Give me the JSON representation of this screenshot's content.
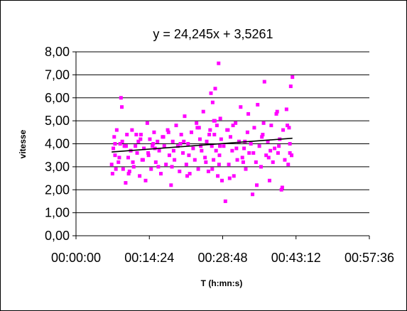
{
  "chart_data": {
    "type": "scatter",
    "title": "",
    "xlabel": "T (h:mn:s)",
    "ylabel": "vitesse",
    "annotation": "y = 24,245x + 3,5261",
    "xlim": [
      "00:00:00",
      "00:57:36"
    ],
    "ylim": [
      0,
      8
    ],
    "x_ticks": [
      "00:00:00",
      "00:14:24",
      "00:28:48",
      "00:43:12",
      "00:57:36"
    ],
    "y_ticks": [
      "0,00",
      "1,00",
      "2,00",
      "3,00",
      "4,00",
      "5,00",
      "6,00",
      "7,00",
      "8,00"
    ],
    "grid": "horizontal",
    "legend": "none",
    "marker": "square",
    "series": [
      {
        "color": "#ff00ff",
        "x": [
          "00:07:00",
          "00:07:10",
          "00:07:20",
          "00:07:30",
          "00:07:40",
          "00:07:50",
          "00:08:00",
          "00:08:20",
          "00:08:40",
          "00:09:00",
          "00:09:15",
          "00:09:30",
          "00:09:45",
          "00:10:00",
          "00:10:15",
          "00:10:30",
          "00:10:45",
          "00:11:00",
          "00:11:20",
          "00:11:40",
          "00:12:00",
          "00:12:15",
          "00:12:30",
          "00:12:45",
          "00:13:00",
          "00:13:20",
          "00:13:40",
          "00:14:00",
          "00:14:15",
          "00:14:30",
          "00:14:45",
          "00:15:00",
          "00:15:20",
          "00:15:40",
          "00:16:00",
          "00:16:20",
          "00:16:40",
          "00:17:00",
          "00:17:20",
          "00:17:40",
          "00:18:00",
          "00:18:20",
          "00:18:40",
          "00:19:00",
          "00:19:20",
          "00:19:40",
          "00:20:00",
          "00:20:20",
          "00:20:40",
          "00:21:00",
          "00:21:20",
          "00:21:40",
          "00:22:00",
          "00:22:20",
          "00:22:40",
          "00:23:00",
          "00:23:20",
          "00:23:40",
          "00:24:00",
          "00:24:20",
          "00:24:40",
          "00:25:00",
          "00:25:20",
          "00:25:40",
          "00:26:00",
          "00:26:20",
          "00:26:30",
          "00:26:40",
          "00:26:50",
          "00:27:00",
          "00:27:10",
          "00:27:20",
          "00:27:30",
          "00:27:40",
          "00:27:50",
          "00:28:00",
          "00:28:10",
          "00:28:20",
          "00:28:30",
          "00:28:40",
          "00:29:00",
          "00:29:20",
          "00:29:40",
          "00:30:00",
          "00:30:20",
          "00:30:40",
          "00:31:00",
          "00:31:20",
          "00:31:40",
          "00:32:00",
          "00:32:20",
          "00:32:40",
          "00:33:00",
          "00:33:20",
          "00:33:40",
          "00:34:00",
          "00:34:20",
          "00:34:40",
          "00:35:00",
          "00:35:20",
          "00:35:40",
          "00:36:00",
          "00:36:20",
          "00:36:40",
          "00:37:00",
          "00:37:20",
          "00:37:40",
          "00:38:00",
          "00:38:20",
          "00:38:40",
          "00:39:00",
          "00:39:20",
          "00:39:40",
          "00:40:00",
          "00:40:20",
          "00:40:40",
          "00:41:00",
          "00:41:20",
          "00:41:40",
          "00:42:00",
          "00:42:10",
          "00:42:20",
          "00:42:30",
          "00:07:40",
          "00:08:30",
          "00:09:50",
          "00:11:10",
          "00:12:40",
          "00:14:10",
          "00:15:30",
          "00:17:10",
          "00:18:50",
          "00:20:30",
          "00:22:10",
          "00:23:50",
          "00:25:30",
          "00:26:10",
          "00:27:15",
          "00:28:15",
          "00:29:50",
          "00:31:30",
          "00:33:10",
          "00:34:50",
          "00:36:30",
          "00:38:10",
          "00:39:50",
          "00:41:30",
          "00:42:20",
          "00:08:50",
          "00:10:20",
          "00:13:10",
          "00:16:10",
          "00:19:10",
          "00:21:50",
          "00:24:30",
          "00:26:45",
          "00:28:05",
          "00:30:10",
          "00:32:50",
          "00:35:30",
          "00:37:50",
          "00:40:30",
          "00:42:00",
          "00:09:05",
          "00:11:50",
          "00:15:10",
          "00:18:10",
          "00:21:10",
          "00:24:10",
          "00:27:05",
          "00:30:50",
          "00:33:50",
          "00:36:50",
          "00:39:30",
          "00:41:50"
        ],
        "y": [
          3.1,
          2.7,
          3.8,
          4.3,
          3.5,
          2.9,
          4.6,
          3.2,
          4.0,
          5.6,
          2.9,
          3.9,
          2.3,
          4.4,
          3.4,
          2.8,
          3.7,
          4.6,
          3.0,
          3.9,
          3.6,
          4.1,
          2.6,
          4.4,
          3.3,
          3.8,
          2.4,
          4.9,
          3.5,
          4.2,
          2.9,
          3.9,
          4.5,
          3.2,
          4.1,
          3.7,
          2.7,
          4.3,
          3.9,
          3.1,
          4.6,
          3.5,
          2.2,
          4.1,
          3.3,
          4.8,
          3.9,
          2.8,
          4.4,
          3.6,
          5.2,
          3.1,
          4.0,
          2.7,
          4.5,
          3.8,
          3.3,
          4.9,
          2.9,
          4.2,
          3.7,
          5.4,
          3.4,
          4.1,
          2.8,
          4.6,
          6.2,
          3.9,
          5.8,
          3.3,
          4.4,
          6.4,
          3.7,
          4.8,
          2.6,
          7.5,
          3.5,
          5.1,
          4.2,
          2.4,
          3.9,
          1.5,
          4.6,
          3.1,
          4.3,
          3.7,
          2.6,
          4.9,
          3.3,
          4.1,
          5.6,
          3.4,
          3.8,
          2.9,
          4.5,
          3.6,
          4.0,
          1.8,
          4.7,
          3.2,
          5.7,
          3.9,
          3.0,
          4.4,
          6.7,
          3.5,
          4.1,
          2.4,
          4.8,
          3.2,
          3.8,
          5.3,
          3.6,
          4.2,
          2.0,
          4.6,
          3.3,
          5.5,
          3.1,
          4.0,
          6.5,
          3.5,
          6.9,
          4.0,
          3.4,
          3.9,
          3.2,
          4.2,
          3.6,
          3.8,
          4.3,
          3.0,
          4.0,
          3.5,
          4.7,
          3.2,
          4.4,
          5.0,
          3.9,
          4.6,
          3.8,
          4.1,
          3.6,
          4.3,
          3.7,
          3.9,
          4.8,
          3.5,
          6.0,
          2.7,
          3.3,
          3.0,
          3.7,
          2.6,
          3.9,
          2.9,
          3.1,
          2.5,
          3.2,
          2.2,
          3.4,
          2.1,
          3.6,
          4.1,
          4.4,
          4.0,
          4.5,
          4.1,
          4.7,
          5.0,
          4.8,
          5.3,
          4.9,
          5.4,
          4.7
        ]
      }
    ],
    "trendline": {
      "slope": 24.245,
      "intercept": 3.5261,
      "x_from": "00:07:00",
      "x_to": "00:42:30"
    }
  }
}
